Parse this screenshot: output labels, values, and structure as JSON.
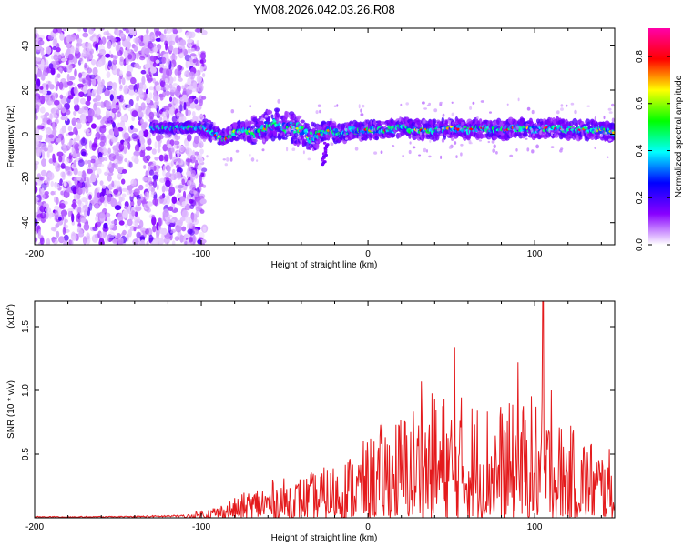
{
  "figure": {
    "title": "YM08.2026.042.03.26.R08"
  },
  "chart_data": [
    {
      "type": "heatmap",
      "xlabel": "Height of straight line (km)",
      "ylabel": "Frequency (Hz)",
      "xlim": [
        -200,
        148
      ],
      "ylim": [
        -50,
        48
      ],
      "x_ticks": [
        -200,
        -100,
        0,
        100
      ],
      "y_ticks": [
        -40,
        -20,
        0,
        20,
        40
      ],
      "colorbar": {
        "label": "Normalized spectral amplitude",
        "range": [
          0,
          0.92
        ],
        "ticks": [
          "0.0",
          "0.2",
          "0.4",
          "0.6",
          "0.8"
        ],
        "tick_values": [
          0,
          0.2,
          0.4,
          0.6,
          0.8
        ],
        "colors": [
          "#ffffff",
          "#8800ff",
          "#0000ff",
          "#00ffff",
          "#00ff00",
          "#ffff00",
          "#ff0000",
          "#ff00aa"
        ]
      },
      "ridge": {
        "description": "dominant frequency track",
        "x": [
          -130,
          -110,
          -100,
          -95,
          -90,
          -85,
          -80,
          -75,
          -70,
          -65,
          -60,
          -55,
          -50,
          -45,
          -40,
          -35,
          -30,
          -25,
          -20,
          -15,
          -10,
          -5,
          0,
          10,
          20,
          30,
          40,
          50,
          60,
          70,
          80,
          90,
          100,
          110,
          120,
          130,
          140,
          148
        ],
        "y": [
          3,
          3,
          3,
          2,
          -1,
          -2,
          1,
          2,
          1,
          1,
          4,
          5,
          3,
          3,
          2,
          -2,
          0,
          2,
          1,
          0,
          2,
          1,
          2,
          2,
          3,
          2,
          2,
          3,
          2,
          3,
          2,
          3,
          2,
          3,
          2,
          2,
          2,
          1
        ]
      }
    },
    {
      "type": "line",
      "xlabel": "Height of straight line (km)",
      "ylabel": "SNR (10 * v/v)",
      "multiplier": "(x10",
      "multiplier_exp": "4",
      "xlim": [
        -200,
        148
      ],
      "ylim": [
        0,
        1.7
      ],
      "x_ticks": [
        -200,
        -100,
        0,
        100
      ],
      "y_ticks": [
        "0.5",
        "1.0",
        "1.5"
      ],
      "y_tick_values": [
        0.5,
        1.0,
        1.5
      ],
      "color": "#e41a1c",
      "envelope": {
        "x": [
          -200,
          -150,
          -110,
          -100,
          -90,
          -80,
          -70,
          -60,
          -50,
          -40,
          -30,
          -20,
          -10,
          0,
          10,
          20,
          30,
          40,
          50,
          60,
          70,
          80,
          90,
          100,
          110,
          120,
          130,
          140,
          148
        ],
        "y": [
          0.01,
          0.01,
          0.02,
          0.06,
          0.1,
          0.15,
          0.22,
          0.28,
          0.3,
          0.32,
          0.36,
          0.42,
          0.5,
          0.6,
          0.75,
          0.8,
          0.9,
          0.95,
          0.95,
          0.92,
          0.9,
          0.88,
          0.85,
          0.95,
          0.8,
          0.7,
          0.65,
          0.55,
          0.5
        ]
      },
      "peaks": [
        {
          "x": 32,
          "y": 1.07
        },
        {
          "x": 52,
          "y": 1.34
        },
        {
          "x": 90,
          "y": 1.22
        },
        {
          "x": 105,
          "y": 1.7
        },
        {
          "x": 110,
          "y": 1.0
        }
      ]
    }
  ]
}
